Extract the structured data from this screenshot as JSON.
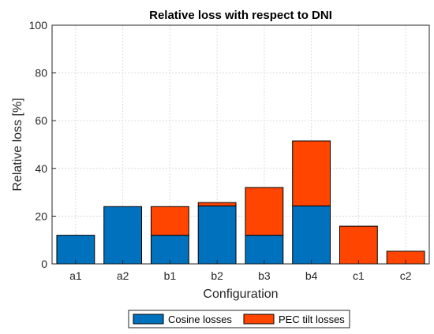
{
  "chart_data": {
    "type": "bar",
    "stacked": true,
    "title": "Relative loss with respect to DNI",
    "xlabel": "Configuration",
    "ylabel": "Relative loss [%]",
    "categories": [
      "a1",
      "a2",
      "b1",
      "b2",
      "b3",
      "b4",
      "c1",
      "c2"
    ],
    "series": [
      {
        "name": "Cosine losses",
        "color": "#0072BD",
        "values": [
          12,
          24,
          12,
          24.3,
          12,
          24.3,
          0,
          0
        ]
      },
      {
        "name": "PEC tilt losses",
        "color": "#FF4500",
        "values": [
          0,
          0,
          12,
          1.4,
          20,
          27.2,
          15.8,
          5.3
        ]
      }
    ],
    "ylim": [
      0,
      100
    ],
    "yticks": [
      0,
      20,
      40,
      60,
      80,
      100
    ],
    "grid": true,
    "legend_position": "bottom-outside"
  }
}
